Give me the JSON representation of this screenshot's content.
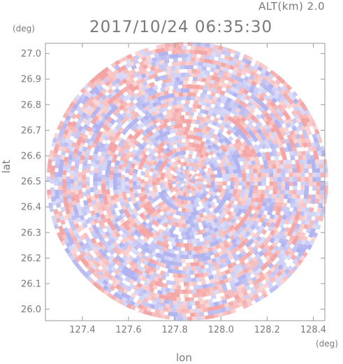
{
  "header": {
    "altitude_label": "ALT(km) 2.0",
    "timestamp": "2017/10/24 06:35:30"
  },
  "chart_data": {
    "type": "heatmap",
    "title": "2017/10/24 06:35:30",
    "subtitle": "ALT(km) 2.0",
    "xlabel": "lon",
    "ylabel": "lat",
    "x_unit": "(deg)",
    "y_unit": "(deg)",
    "xlim": [
      127.24,
      128.45
    ],
    "ylim": [
      25.955,
      27.04
    ],
    "x_ticks": [
      127.4,
      127.6,
      127.8,
      128.0,
      128.2,
      128.4
    ],
    "x_tick_labels": [
      "127.4",
      "127.6",
      "127.8",
      "128.0",
      "128.2",
      "128.4"
    ],
    "y_ticks": [
      26.0,
      26.1,
      26.2,
      26.3,
      26.4,
      26.5,
      26.6,
      26.7,
      26.8,
      26.9,
      27.0
    ],
    "y_tick_labels": [
      "26.0",
      "26.1",
      "26.2",
      "26.3",
      "26.4",
      "26.5",
      "26.6",
      "26.7",
      "26.8",
      "26.9",
      "27.0"
    ],
    "scan_center": {
      "lon": 127.855,
      "lat": 26.5
    },
    "scan_radius_deg": {
      "lon": 0.61,
      "lat": 0.545
    },
    "colors": {
      "positive": "#f4a6a6",
      "negative": "#b2b4f0",
      "zero": "#ffffff"
    },
    "grid": false,
    "legend": "none"
  }
}
